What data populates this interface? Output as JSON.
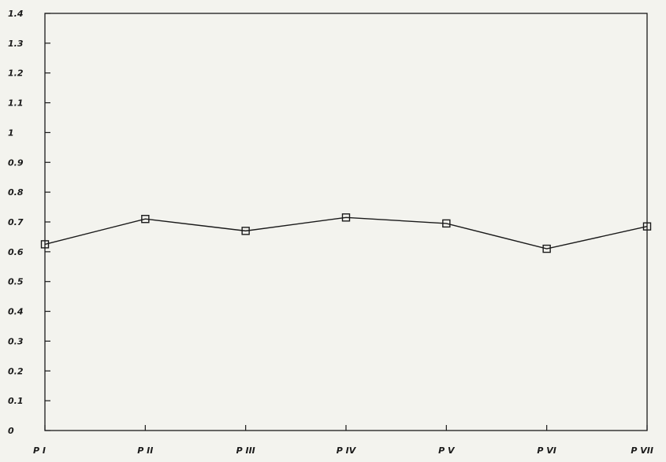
{
  "chart_data": {
    "type": "line",
    "categories": [
      "P I",
      "P II",
      "P III",
      "P IV",
      "P V",
      "P VI",
      "P VII"
    ],
    "series": [
      {
        "values": [
          0.625,
          0.71,
          0.67,
          0.715,
          0.695,
          0.61,
          0.685
        ],
        "marker": "square"
      }
    ],
    "ylim": [
      0,
      1.4
    ],
    "yticks": [
      "0",
      "0.1",
      "0.2",
      "0.3",
      "0.4",
      "0.5",
      "0.6",
      "0.7",
      "0.8",
      "0.9",
      "1",
      "1.1",
      "1.2",
      "1.3",
      "1.4"
    ],
    "grid": false,
    "colors": {
      "line": "#1a1a1a",
      "background": "#f3f3ee"
    }
  }
}
